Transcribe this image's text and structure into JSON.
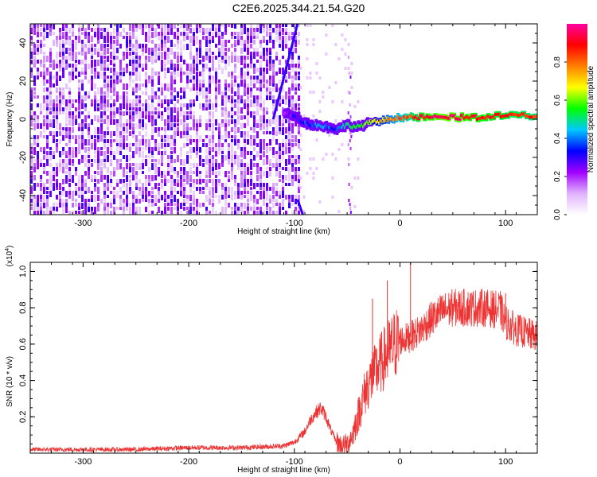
{
  "title": "C2E6.2025.344.21.54.G20",
  "chart_data": [
    {
      "type": "heatmap",
      "name": "spectrogram",
      "xlabel": "Height of straight line (km)",
      "ylabel": "Frequency (Hz)",
      "xlim": [
        -350,
        130
      ],
      "ylim": [
        -50,
        50
      ],
      "xticks": [
        -300,
        -200,
        -100,
        0,
        100
      ],
      "yticks": [
        -40,
        -20,
        0,
        20,
        40
      ],
      "colorbar": {
        "label": "Normalized spectral amplitude",
        "range": [
          0,
          1
        ],
        "ticks": [
          0.0,
          0.2,
          0.4,
          0.6,
          0.8
        ],
        "colors": [
          "#ffffff",
          "#e0b3ff",
          "#a000ff",
          "#0000ff",
          "#00c8ff",
          "#00ff00",
          "#ffff00",
          "#ff8000",
          "#ff0000",
          "#ff00a0"
        ]
      },
      "noise_region": {
        "x": [
          -350,
          -95
        ],
        "amplitude": [
          0.05,
          0.3
        ]
      },
      "signal_track": {
        "x": [
          -110,
          -100,
          -90,
          -80,
          -70,
          -60,
          -50,
          -40,
          -30,
          -20,
          -10,
          0,
          10,
          20,
          40,
          60,
          80,
          100,
          130
        ],
        "freq": [
          3,
          2,
          -2,
          -3,
          -4,
          -5,
          -3,
          -4,
          -2,
          -1,
          0,
          1,
          1,
          1,
          1,
          1,
          1,
          2,
          2
        ],
        "amplitude": [
          0.2,
          0.3,
          0.35,
          0.4,
          0.4,
          0.35,
          0.5,
          0.55,
          0.6,
          0.7,
          0.75,
          0.8,
          0.85,
          0.9,
          0.95,
          0.92,
          0.9,
          0.88,
          0.85
        ]
      },
      "diagonal_streak": {
        "x": [
          -120,
          -97
        ],
        "freq": [
          0,
          50
        ]
      }
    },
    {
      "type": "line",
      "name": "snr",
      "xlabel": "Height of straight line (km)",
      "ylabel": "SNR (10 * v/v)",
      "scale_label": "(x10",
      "scale_exp": "4",
      "color": "#ee3333",
      "xlim": [
        -350,
        130
      ],
      "ylim": [
        0,
        1.05
      ],
      "xticks": [
        -300,
        -200,
        -100,
        0,
        100
      ],
      "yticks": [
        0.2,
        0.4,
        0.6,
        0.8,
        1.0
      ],
      "ytick_labels": [
        "0.2",
        "0.4",
        "0.6",
        "0.8",
        "1.0"
      ],
      "series": [
        {
          "name": "SNR",
          "x": [
            -350,
            -300,
            -250,
            -200,
            -150,
            -110,
            -100,
            -90,
            -85,
            -80,
            -75,
            -70,
            -65,
            -60,
            -55,
            -50,
            -45,
            -40,
            -35,
            -30,
            -25,
            -20,
            -15,
            -10,
            -5,
            0,
            10,
            20,
            30,
            40,
            50,
            60,
            70,
            80,
            90,
            95,
            100,
            105,
            110,
            120,
            130
          ],
          "values": [
            0.02,
            0.02,
            0.02,
            0.03,
            0.03,
            0.04,
            0.06,
            0.12,
            0.18,
            0.22,
            0.25,
            0.2,
            0.12,
            0.06,
            0.04,
            0.05,
            0.1,
            0.2,
            0.3,
            0.38,
            0.43,
            0.48,
            0.52,
            0.56,
            0.6,
            0.62,
            0.64,
            0.68,
            0.74,
            0.78,
            0.8,
            0.8,
            0.8,
            0.8,
            0.79,
            0.79,
            0.72,
            0.7,
            0.68,
            0.66,
            0.64
          ]
        }
      ],
      "spikes": [
        {
          "x": -26,
          "value": 0.85
        },
        {
          "x": -12,
          "value": 0.95
        },
        {
          "x": 10,
          "value": 1.05
        },
        {
          "x": 100,
          "value": 0.88
        }
      ]
    }
  ]
}
